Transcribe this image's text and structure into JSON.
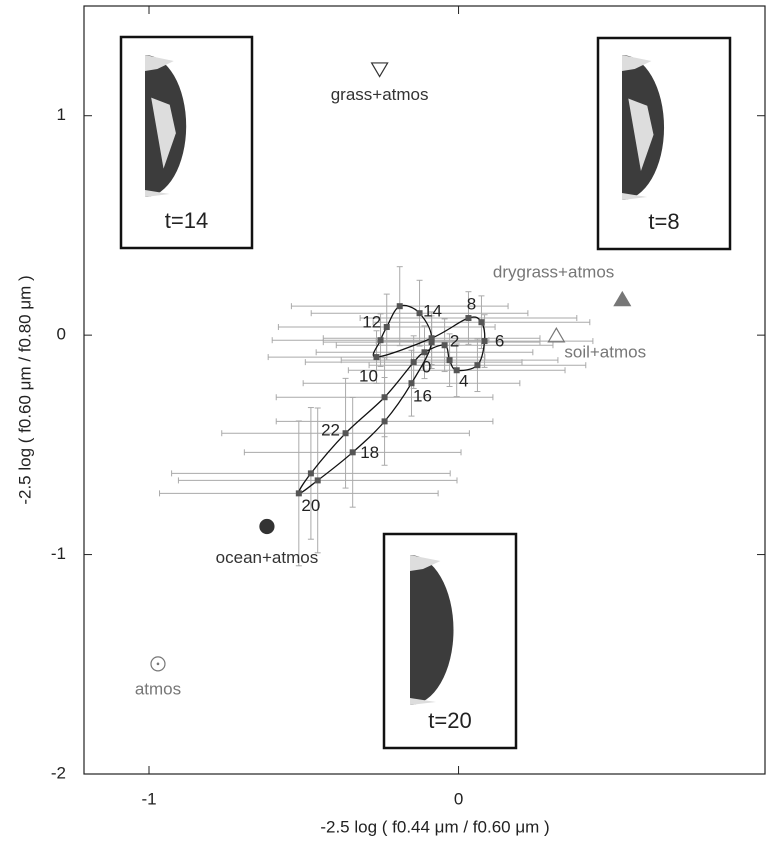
{
  "chart_data": {
    "type": "scatter",
    "xlabel": "-2.5 log ( f0.44 μm  / f0.60 μm )",
    "ylabel": "-2.5 log ( f0.60 μm  / f0.80 μm )",
    "xlim": [
      -1.21,
      0.99
    ],
    "ylim": [
      -2,
      1.5
    ],
    "xticks": [
      -1,
      0
    ],
    "yticks": [
      -2,
      -1,
      0,
      1
    ],
    "series": [
      {
        "color": "#555555",
        "x": [
          -0.145,
          -0.11,
          -0.045,
          -0.029,
          -0.006,
          0.061,
          0.084,
          0.074,
          0.032,
          -0.087,
          -0.265,
          -0.252,
          -0.232,
          -0.19,
          -0.126,
          -0.087,
          -0.152,
          -0.239,
          -0.342,
          -0.455,
          -0.516,
          -0.477,
          -0.365,
          -0.239
        ],
        "y": [
          -0.123,
          -0.078,
          -0.046,
          -0.114,
          -0.16,
          -0.137,
          -0.027,
          0.059,
          0.078,
          -0.014,
          -0.1,
          -0.023,
          0.037,
          0.132,
          0.1,
          -0.032,
          -0.219,
          -0.393,
          -0.534,
          -0.662,
          -0.721,
          -0.63,
          -0.447,
          -0.283
        ],
        "xerr": [
          0.35,
          0.35,
          0.35,
          0.35,
          0.35,
          0.35,
          0.35,
          0.35,
          0.35,
          0.35,
          0.35,
          0.35,
          0.35,
          0.35,
          0.35,
          0.35,
          0.35,
          0.35,
          0.35,
          0.45,
          0.45,
          0.45,
          0.4,
          0.35
        ],
        "yerr": [
          0.12,
          0.12,
          0.12,
          0.12,
          0.12,
          0.12,
          0.12,
          0.12,
          0.12,
          0.12,
          0.12,
          0.12,
          0.15,
          0.18,
          0.15,
          0.12,
          0.15,
          0.2,
          0.25,
          0.33,
          0.33,
          0.3,
          0.25,
          0.18
        ],
        "labels": [
          "0",
          null,
          "2",
          null,
          "4",
          null,
          "6",
          null,
          "8",
          null,
          "10",
          null,
          "12",
          null,
          "14",
          null,
          "16",
          null,
          "18",
          null,
          "20",
          null,
          "22",
          null
        ]
      },
      {
        "name": "grass+atmos",
        "x": [
          -0.255
        ],
        "y": [
          1.215
        ],
        "marker": "triangle-down-open",
        "color": "#333333"
      },
      {
        "name": "drygrass+atmos",
        "x": [
          0.529
        ],
        "y": [
          0.16
        ],
        "marker": "triangle-up-filled",
        "color": "#777777"
      },
      {
        "name": "soil+atmos",
        "x": [
          0.316
        ],
        "y": [
          -0.005
        ],
        "marker": "triangle-up-open",
        "color": "#777777"
      },
      {
        "name": "ocean+atmos",
        "x": [
          -0.619
        ],
        "y": [
          -0.872
        ],
        "marker": "circle-filled",
        "color": "#333333"
      },
      {
        "name": "atmos",
        "x": [
          -0.971
        ],
        "y": [
          -1.498
        ],
        "marker": "circle-dot",
        "color": "#777777"
      }
    ],
    "insets": [
      "t=14",
      "t=8",
      "t=20"
    ]
  }
}
